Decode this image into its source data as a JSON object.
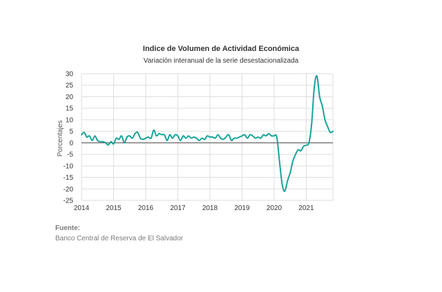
{
  "chart_data": {
    "type": "line",
    "title": "Indice de Volumen de  Actividad Económica",
    "subtitle": "Variación interanual de la serie desestacionalizada",
    "xlabel": "",
    "ylabel": "Porcentajes",
    "ylim": [
      -25,
      30
    ],
    "yticks": [
      30,
      25,
      20,
      15,
      10,
      5,
      0,
      -5,
      -10,
      -15,
      -20,
      -25
    ],
    "xlim": [
      2014.0,
      2021.83
    ],
    "xticks": [
      "2014",
      "2015",
      "2016",
      "2017",
      "2018",
      "2019",
      "2020",
      "2021"
    ],
    "grid": true,
    "legend": "none",
    "colors": {
      "series": "#17a398",
      "grid": "#dddddd",
      "zero_line": "#444444"
    },
    "series": [
      {
        "x": [
          2014.0,
          2014.083,
          2014.167,
          2014.25,
          2014.333,
          2014.417,
          2014.5,
          2014.583,
          2014.667,
          2014.75,
          2014.833,
          2014.917,
          2015.0,
          2015.083,
          2015.167,
          2015.25,
          2015.333,
          2015.417,
          2015.5,
          2015.583,
          2015.667,
          2015.75,
          2015.833,
          2015.917,
          2016.0,
          2016.083,
          2016.167,
          2016.25,
          2016.333,
          2016.417,
          2016.5,
          2016.583,
          2016.667,
          2016.75,
          2016.833,
          2016.917,
          2017.0,
          2017.083,
          2017.167,
          2017.25,
          2017.333,
          2017.417,
          2017.5,
          2017.583,
          2017.667,
          2017.75,
          2017.833,
          2017.917,
          2018.0,
          2018.083,
          2018.167,
          2018.25,
          2018.333,
          2018.417,
          2018.5,
          2018.583,
          2018.667,
          2018.75,
          2018.833,
          2018.917,
          2019.0,
          2019.083,
          2019.167,
          2019.25,
          2019.333,
          2019.417,
          2019.5,
          2019.583,
          2019.667,
          2019.75,
          2019.833,
          2019.917,
          2020.0,
          2020.083,
          2020.167,
          2020.25,
          2020.333,
          2020.417,
          2020.5,
          2020.583,
          2020.667,
          2020.75,
          2020.833,
          2020.917,
          2021.0,
          2021.083,
          2021.167,
          2021.25,
          2021.333,
          2021.417,
          2021.5,
          2021.583,
          2021.667,
          2021.75,
          2021.833
        ],
        "values": [
          3.5,
          4.5,
          2.5,
          3.0,
          1.0,
          3.0,
          1.0,
          0.5,
          0.5,
          0.0,
          -1.0,
          0.5,
          -0.5,
          2.0,
          1.5,
          3.0,
          0.0,
          2.5,
          3.0,
          2.0,
          4.0,
          4.5,
          2.0,
          1.5,
          2.0,
          2.5,
          2.0,
          5.5,
          3.0,
          4.0,
          3.5,
          3.5,
          1.0,
          3.5,
          2.0,
          3.5,
          3.0,
          1.0,
          3.0,
          2.0,
          3.0,
          2.0,
          2.5,
          2.0,
          1.0,
          2.0,
          1.5,
          3.0,
          2.5,
          2.5,
          2.0,
          3.5,
          2.0,
          1.5,
          2.5,
          3.5,
          1.0,
          2.0,
          2.0,
          2.5,
          3.0,
          3.5,
          2.0,
          3.5,
          3.0,
          2.0,
          2.5,
          2.0,
          3.5,
          3.0,
          4.0,
          3.0,
          3.0,
          2.5,
          -8.0,
          -18.0,
          -21.0,
          -16.5,
          -13.0,
          -8.0,
          -5.0,
          -3.0,
          -3.5,
          -1.5,
          -1.0,
          0.0,
          8.0,
          24.0,
          29.0,
          20.0,
          16.0,
          10.0,
          7.0,
          4.5,
          5.0
        ]
      }
    ]
  },
  "source": {
    "label": "Fuente:",
    "text": "Banco Central de Reserva de El Salvador"
  }
}
